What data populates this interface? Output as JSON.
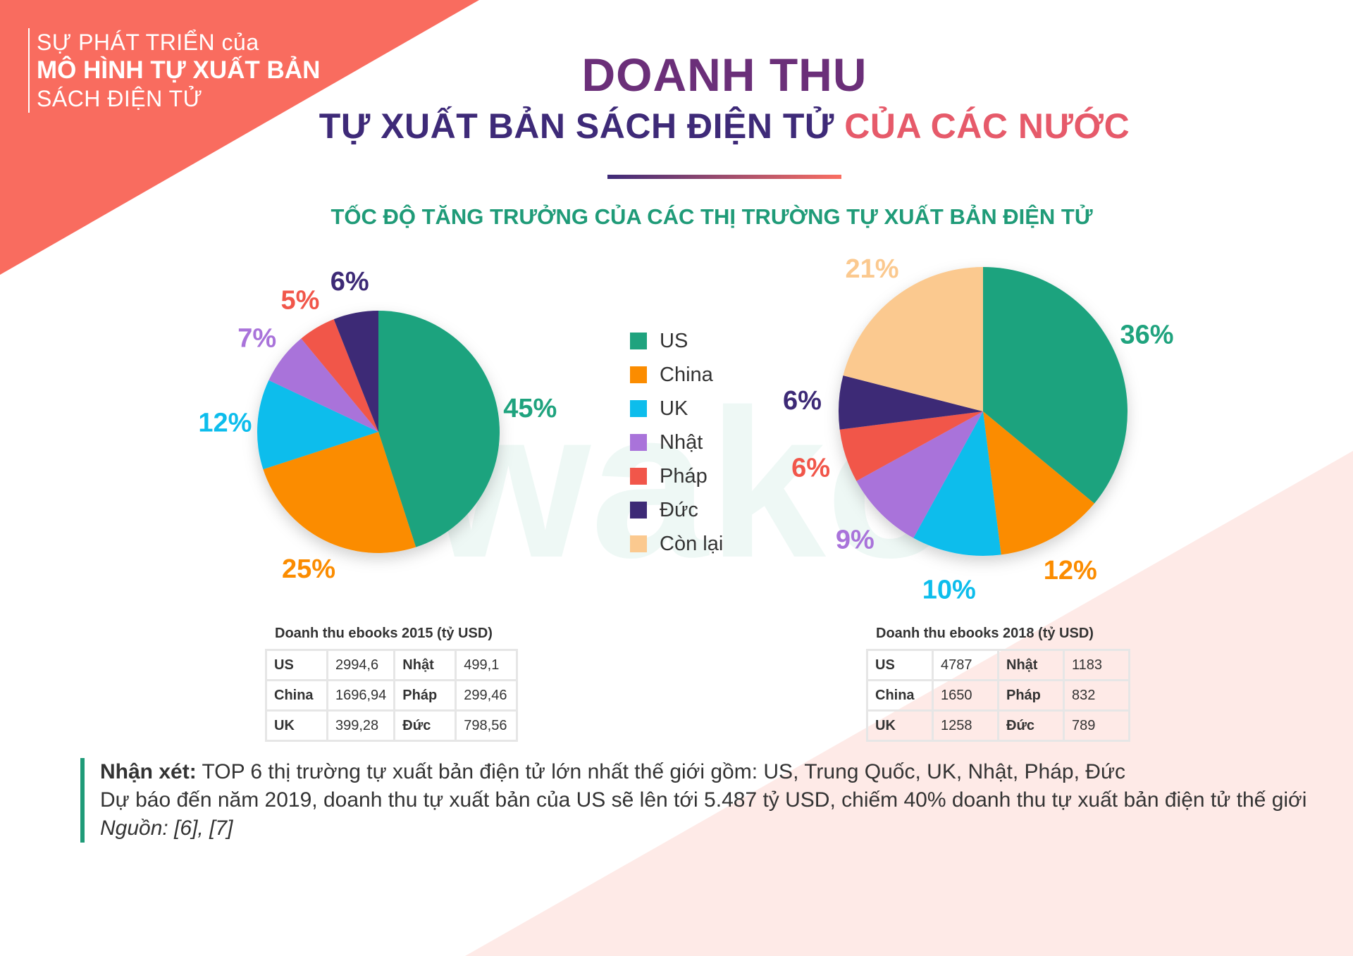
{
  "colors": {
    "corner": "#f96c5f",
    "us": "#1fa37e",
    "china": "#fb8c00",
    "uk": "#0dbdec",
    "japan": "#a973da",
    "france": "#f1564a",
    "germany": "#3d2a76",
    "rest": "#fbc98f"
  },
  "corner": {
    "line1": "SỰ PHÁT TRIỂN của",
    "line2": "MÔ HÌNH TỰ XUẤT BẢN",
    "line3": "SÁCH ĐIỆN TỬ"
  },
  "title": {
    "line1": "DOANH THU",
    "line2_part1": "TỰ XUẤT BẢN SÁCH ĐIỆN TỬ",
    "line2_part2": "CỦA CÁC NƯỚC"
  },
  "subtitle": "TỐC ĐỘ TĂNG TRƯỞNG CỦA CÁC THỊ TRƯỜNG TỰ XUẤT BẢN ĐIỆN TỬ",
  "legend": [
    {
      "label": "US",
      "color": "#1fa37e"
    },
    {
      "label": "China",
      "color": "#fb8c00"
    },
    {
      "label": "UK",
      "color": "#0dbdec"
    },
    {
      "label": "Nhật",
      "color": "#a973da"
    },
    {
      "label": "Pháp",
      "color": "#f1564a"
    },
    {
      "label": "Đức",
      "color": "#3d2a76"
    },
    {
      "label": "Còn lại",
      "color": "#fbc98f"
    }
  ],
  "chart_data": [
    {
      "type": "pie",
      "categories": [
        "US",
        "China",
        "UK",
        "Nhật",
        "Pháp",
        "Đức"
      ],
      "values": [
        45,
        25,
        12,
        7,
        5,
        6
      ],
      "labels": [
        "45%",
        "25%",
        "12%",
        "7%",
        "5%",
        "6%"
      ],
      "colors": [
        "#1fa37e",
        "#fb8c00",
        "#0dbdec",
        "#a973da",
        "#f1564a",
        "#3d2a76"
      ]
    },
    {
      "type": "pie",
      "categories": [
        "US",
        "China",
        "UK",
        "Nhật",
        "Pháp",
        "Đức",
        "Còn lại"
      ],
      "values": [
        36,
        12,
        10,
        9,
        6,
        6,
        21
      ],
      "labels": [
        "36%",
        "12%",
        "10%",
        "9%",
        "6%",
        "6%",
        "21%"
      ],
      "colors": [
        "#1fa37e",
        "#fb8c00",
        "#0dbdec",
        "#a973da",
        "#f1564a",
        "#3d2a76",
        "#fbc98f"
      ]
    }
  ],
  "tables": [
    {
      "caption": "Doanh thu ebooks 2015 (tỷ USD)",
      "rows": [
        [
          "US",
          "2994,6",
          "Nhật",
          "499,1"
        ],
        [
          "China",
          "1696,94",
          "Pháp",
          "299,46"
        ],
        [
          "UK",
          "399,28",
          "Đức",
          "798,56"
        ]
      ]
    },
    {
      "caption": "Doanh thu ebooks 2018 (tỷ USD)",
      "rows": [
        [
          "US",
          "4787",
          "Nhật",
          "1183"
        ],
        [
          "China",
          "1650",
          "Pháp",
          "832"
        ],
        [
          "UK",
          "1258",
          "Đức",
          "789"
        ]
      ]
    }
  ],
  "note": {
    "label": "Nhận xét:",
    "line1": "TOP 6 thị trường tự xuất bản điện tử lớn nhất thế giới gồm: US, Trung Quốc, UK, Nhật, Pháp, Đức",
    "line2": "Dự báo đến năm 2019, doanh thu tự xuất bản của US sẽ lên tới 5.487 tỷ USD, chiếm 40% doanh thu tự xuất bản điện tử thế giới",
    "source": "Nguồn: [6], [7]"
  }
}
